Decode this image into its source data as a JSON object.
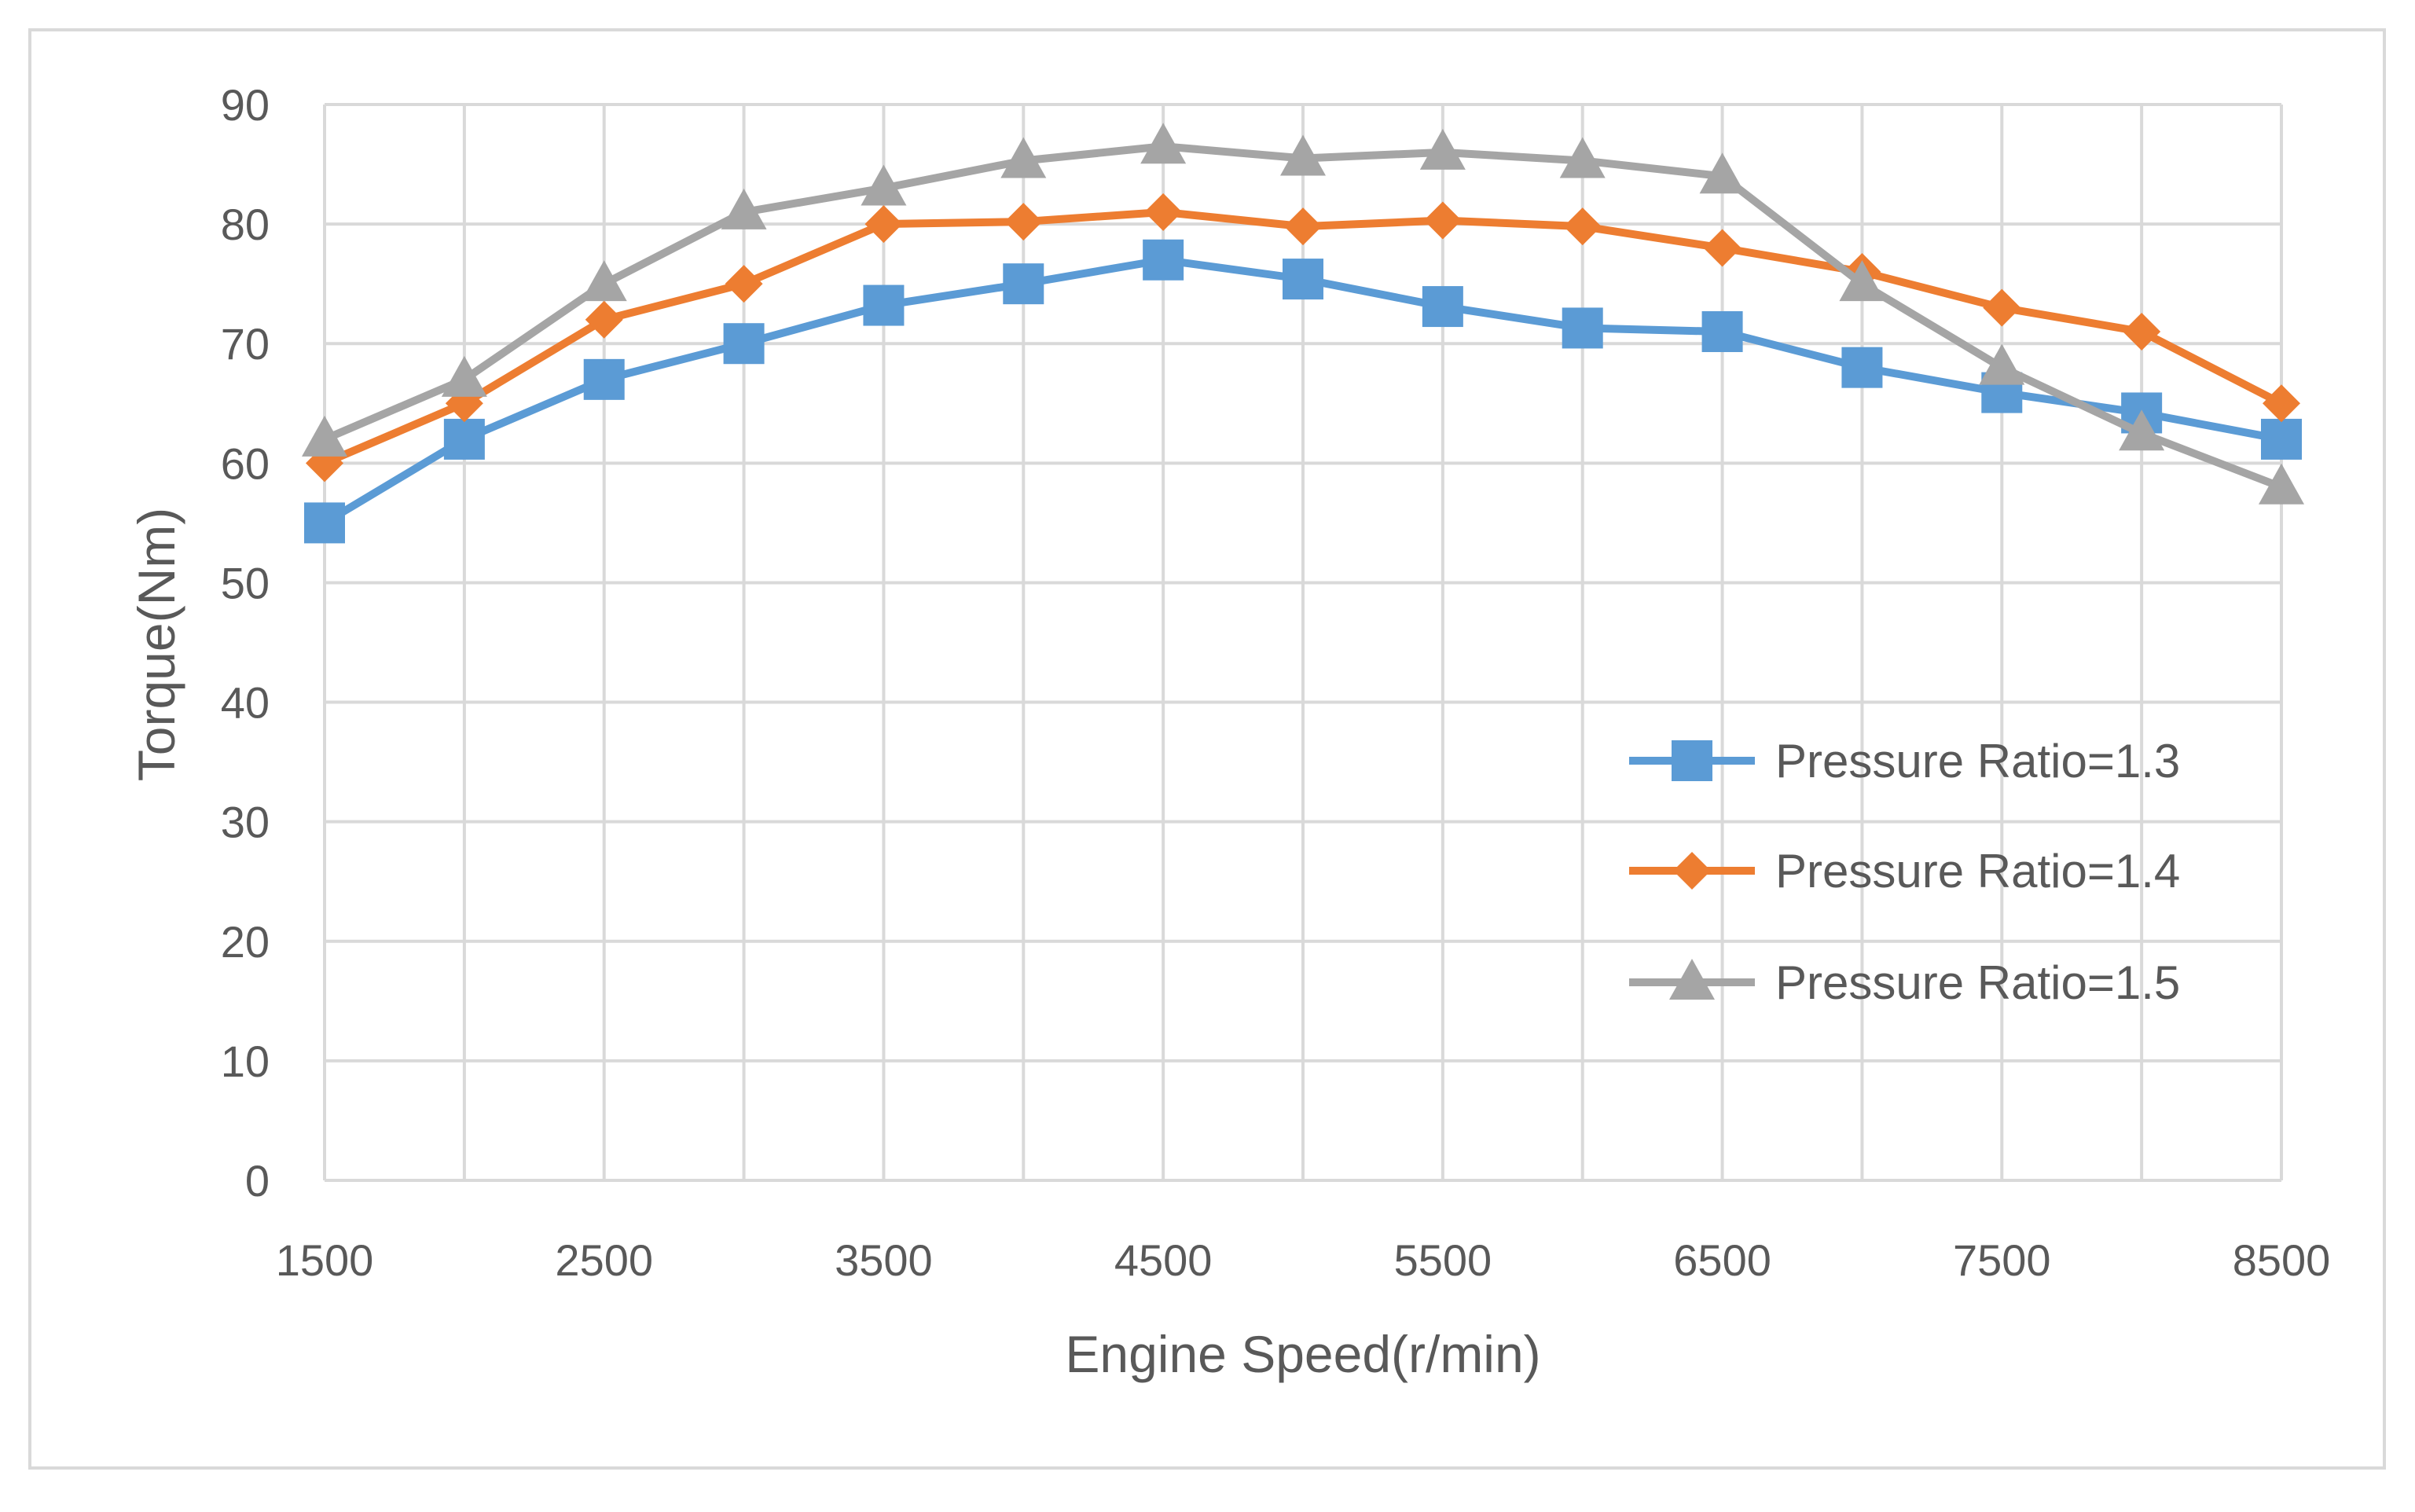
{
  "chart_data": {
    "type": "line",
    "title": "",
    "xlabel": "Engine Speed(r/min)",
    "ylabel": "Torque(Nm)",
    "x": [
      1500,
      2000,
      2500,
      3000,
      3500,
      4000,
      4500,
      5000,
      5500,
      6000,
      6500,
      7000,
      7500,
      8000,
      8500
    ],
    "xlim": [
      1500,
      8500
    ],
    "xticks": [
      1500,
      2500,
      3500,
      4500,
      5500,
      6500,
      7500,
      8500
    ],
    "ylim": [
      0,
      90
    ],
    "yticks": [
      0,
      10,
      20,
      30,
      40,
      50,
      60,
      70,
      80,
      90
    ],
    "grid": true,
    "legend_position": "right",
    "series": [
      {
        "name": "Pressure Ratio=1.3",
        "color": "#5b9bd5",
        "marker": "square",
        "values": [
          55,
          62,
          67,
          70,
          73.2,
          75,
          77,
          75.4,
          73.1,
          71.3,
          71,
          68,
          65.9,
          64.2,
          62
        ]
      },
      {
        "name": "Pressure Ratio=1.4",
        "color": "#ed7d31",
        "marker": "diamond",
        "values": [
          60,
          65,
          72,
          75,
          80,
          80.2,
          81,
          79.8,
          80.3,
          79.8,
          78,
          76,
          73,
          71,
          65
        ]
      },
      {
        "name": "Pressure Ratio=1.5",
        "color": "#a5a5a5",
        "marker": "triangle",
        "values": [
          62,
          67,
          75,
          81,
          83,
          85.3,
          86.5,
          85.5,
          86,
          85.3,
          84,
          75,
          68,
          62.5,
          58
        ]
      }
    ]
  }
}
